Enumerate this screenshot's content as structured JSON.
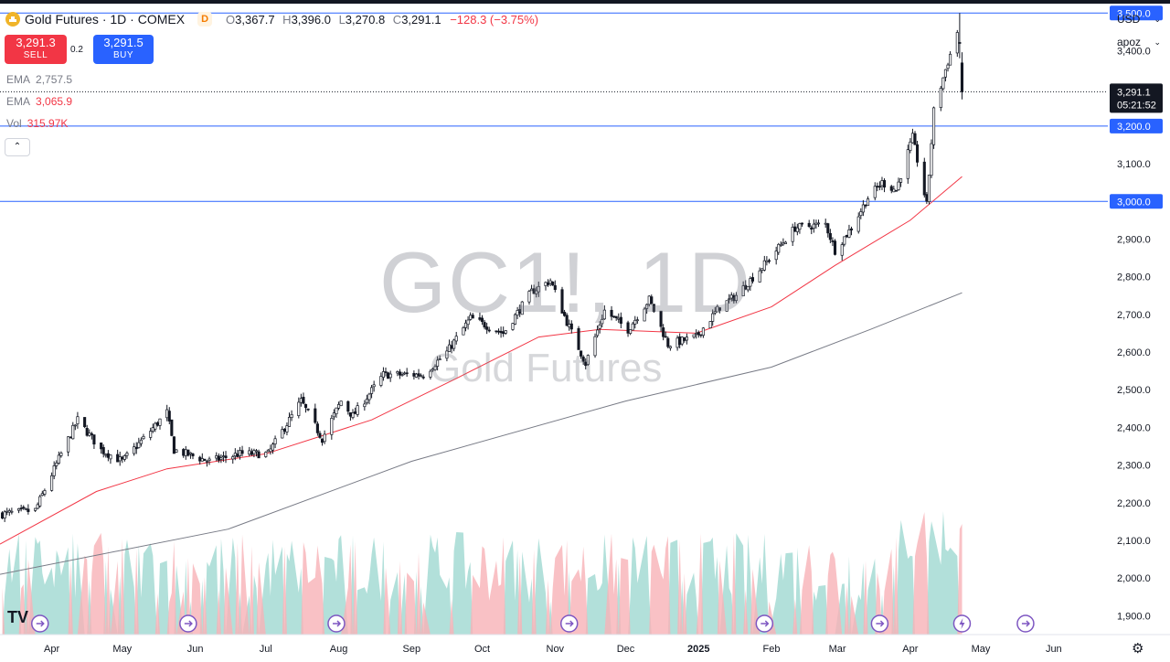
{
  "header": {
    "title": "Gold Futures · 1D · COMEX",
    "badge": "D",
    "ohlc": {
      "o_label": "O",
      "o": "3,367.7",
      "h_label": "H",
      "h": "3,396.0",
      "l_label": "L",
      "l": "3,270.8",
      "c_label": "C",
      "c": "3,291.1",
      "change": "−128.3 (−3.75%)"
    }
  },
  "trade": {
    "sell_price": "3,291.3",
    "sell_label": "SELL",
    "buy_price": "3,291.5",
    "buy_label": "BUY",
    "spread": "0.2"
  },
  "indicators": [
    {
      "name": "EMA",
      "value": "2,757.5",
      "color": "#787b86"
    },
    {
      "name": "EMA",
      "value": "3,065.9",
      "color": "#f23645"
    },
    {
      "name": "Vol",
      "value": "315.97K",
      "color": "#f23645"
    }
  ],
  "toolbar": {
    "currency": "USD",
    "scale": "apoz"
  },
  "watermark": {
    "symbol": "GC1!, 1D",
    "name": "Gold Futures"
  },
  "logo": "TV",
  "chart_data": {
    "type": "candlestick",
    "title": "Gold Futures",
    "ylim": [
      1850,
      3525
    ],
    "yticks": [
      1900,
      2000,
      2100,
      2200,
      2300,
      2400,
      2500,
      2600,
      2700,
      2800,
      2900,
      3000,
      3100,
      3200,
      3300,
      3400,
      3500
    ],
    "ytick_labels": [
      "1,900.0",
      "2,000.0",
      "2,100.0",
      "2,200.0",
      "2,300.0",
      "2,400.0",
      "2,500.0",
      "2,600.0",
      "2,700.0",
      "2,800.0",
      "2,900.0",
      "3,000.0",
      "3,100.0",
      "3,200.0",
      "3,300.0",
      "3,400.0",
      "3,500.0"
    ],
    "x_labels": [
      {
        "label": "Apr",
        "date": "2024-04-01"
      },
      {
        "label": "May",
        "date": "2024-05-01"
      },
      {
        "label": "Jun",
        "date": "2024-06-01"
      },
      {
        "label": "Jul",
        "date": "2024-07-01"
      },
      {
        "label": "Aug",
        "date": "2024-08-01"
      },
      {
        "label": "Sep",
        "date": "2024-09-01"
      },
      {
        "label": "Oct",
        "date": "2024-10-01"
      },
      {
        "label": "Nov",
        "date": "2024-11-01"
      },
      {
        "label": "Dec",
        "date": "2024-12-01"
      },
      {
        "label": "2025",
        "date": "2025-01-01"
      },
      {
        "label": "Feb",
        "date": "2025-02-01"
      },
      {
        "label": "Mar",
        "date": "2025-03-01"
      },
      {
        "label": "Apr",
        "date": "2025-04-01"
      },
      {
        "label": "May",
        "date": "2025-05-01"
      },
      {
        "label": "Jun",
        "date": "2025-06-01"
      }
    ],
    "x_start": "2024-03-10",
    "x_end": "2025-06-24",
    "horizontal_lines": [
      {
        "value": 3500,
        "label": "3,500.0",
        "color": "#2962ff"
      },
      {
        "value": 3200,
        "label": "3,200.0",
        "color": "#2962ff"
      },
      {
        "value": 3000,
        "label": "3,000.0",
        "color": "#2962ff"
      }
    ],
    "last_price": {
      "value": 3291.1,
      "label": "3,291.1",
      "countdown": "05:21:52"
    },
    "close_anchors": [
      {
        "date": "2024-03-11",
        "close": 2170
      },
      {
        "date": "2024-03-25",
        "close": 2180
      },
      {
        "date": "2024-04-05",
        "close": 2330
      },
      {
        "date": "2024-04-12",
        "close": 2420
      },
      {
        "date": "2024-04-22",
        "close": 2340
      },
      {
        "date": "2024-05-01",
        "close": 2310
      },
      {
        "date": "2024-05-10",
        "close": 2370
      },
      {
        "date": "2024-05-20",
        "close": 2440
      },
      {
        "date": "2024-05-23",
        "close": 2340
      },
      {
        "date": "2024-06-07",
        "close": 2310
      },
      {
        "date": "2024-06-20",
        "close": 2330
      },
      {
        "date": "2024-07-02",
        "close": 2330
      },
      {
        "date": "2024-07-16",
        "close": 2470
      },
      {
        "date": "2024-07-25",
        "close": 2370
      },
      {
        "date": "2024-08-02",
        "close": 2470
      },
      {
        "date": "2024-08-07",
        "close": 2430
      },
      {
        "date": "2024-08-20",
        "close": 2540
      },
      {
        "date": "2024-09-06",
        "close": 2540
      },
      {
        "date": "2024-09-16",
        "close": 2600
      },
      {
        "date": "2024-09-26",
        "close": 2690
      },
      {
        "date": "2024-10-10",
        "close": 2650
      },
      {
        "date": "2024-10-22",
        "close": 2760
      },
      {
        "date": "2024-10-30",
        "close": 2790
      },
      {
        "date": "2024-11-06",
        "close": 2680
      },
      {
        "date": "2024-11-14",
        "close": 2570
      },
      {
        "date": "2024-11-22",
        "close": 2710
      },
      {
        "date": "2024-12-02",
        "close": 2660
      },
      {
        "date": "2024-12-11",
        "close": 2740
      },
      {
        "date": "2024-12-19",
        "close": 2620
      },
      {
        "date": "2024-12-31",
        "close": 2640
      },
      {
        "date": "2025-01-10",
        "close": 2720
      },
      {
        "date": "2025-01-17",
        "close": 2750
      },
      {
        "date": "2025-01-30",
        "close": 2840
      },
      {
        "date": "2025-02-11",
        "close": 2930
      },
      {
        "date": "2025-02-24",
        "close": 2940
      },
      {
        "date": "2025-02-28",
        "close": 2870
      },
      {
        "date": "2025-03-07",
        "close": 2930
      },
      {
        "date": "2025-03-14",
        "close": 3010
      },
      {
        "date": "2025-03-20",
        "close": 3050
      },
      {
        "date": "2025-03-26",
        "close": 3030
      },
      {
        "date": "2025-04-02",
        "close": 3170
      },
      {
        "date": "2025-04-08",
        "close": 2990
      },
      {
        "date": "2025-04-11",
        "close": 3240
      },
      {
        "date": "2025-04-16",
        "close": 3350
      },
      {
        "date": "2025-04-21",
        "close": 3450
      },
      {
        "date": "2025-04-22",
        "close": 3420
      },
      {
        "date": "2025-04-23",
        "close": 3291.1
      }
    ],
    "ema_slow": [
      {
        "date": "2024-03-10",
        "value": 2010
      },
      {
        "date": "2024-06-15",
        "value": 2130
      },
      {
        "date": "2024-09-01",
        "value": 2310
      },
      {
        "date": "2024-12-01",
        "value": 2470
      },
      {
        "date": "2025-02-01",
        "value": 2560
      },
      {
        "date": "2025-03-15",
        "value": 2660
      },
      {
        "date": "2025-04-23",
        "value": 2757.5
      }
    ],
    "ema_fast": [
      {
        "date": "2024-03-10",
        "value": 2090
      },
      {
        "date": "2024-04-20",
        "value": 2230
      },
      {
        "date": "2024-05-20",
        "value": 2290
      },
      {
        "date": "2024-07-01",
        "value": 2330
      },
      {
        "date": "2024-08-15",
        "value": 2420
      },
      {
        "date": "2024-09-20",
        "value": 2530
      },
      {
        "date": "2024-10-25",
        "value": 2640
      },
      {
        "date": "2024-11-20",
        "value": 2660
      },
      {
        "date": "2024-12-31",
        "value": 2650
      },
      {
        "date": "2025-02-01",
        "value": 2720
      },
      {
        "date": "2025-02-28",
        "value": 2830
      },
      {
        "date": "2025-04-01",
        "value": 2950
      },
      {
        "date": "2025-04-23",
        "value": 3065.9
      }
    ],
    "event_markers": [
      {
        "date": "2024-03-27",
        "kind": "arrow"
      },
      {
        "date": "2024-05-29",
        "kind": "arrow"
      },
      {
        "date": "2024-07-31",
        "kind": "arrow"
      },
      {
        "date": "2024-11-07",
        "kind": "arrow"
      },
      {
        "date": "2025-01-29",
        "kind": "arrow"
      },
      {
        "date": "2025-03-19",
        "kind": "arrow"
      },
      {
        "date": "2025-04-23",
        "kind": "lightning"
      },
      {
        "date": "2025-05-20",
        "kind": "arrow"
      }
    ]
  },
  "colors": {
    "up": "#089981",
    "down": "#f23645",
    "ema_fast": "#f23645",
    "ema_slow": "#787b86",
    "hline": "#2962ff",
    "vol_up": "#9fd8d1",
    "vol_down": "#f8b2b6",
    "axis_text": "#131722"
  }
}
